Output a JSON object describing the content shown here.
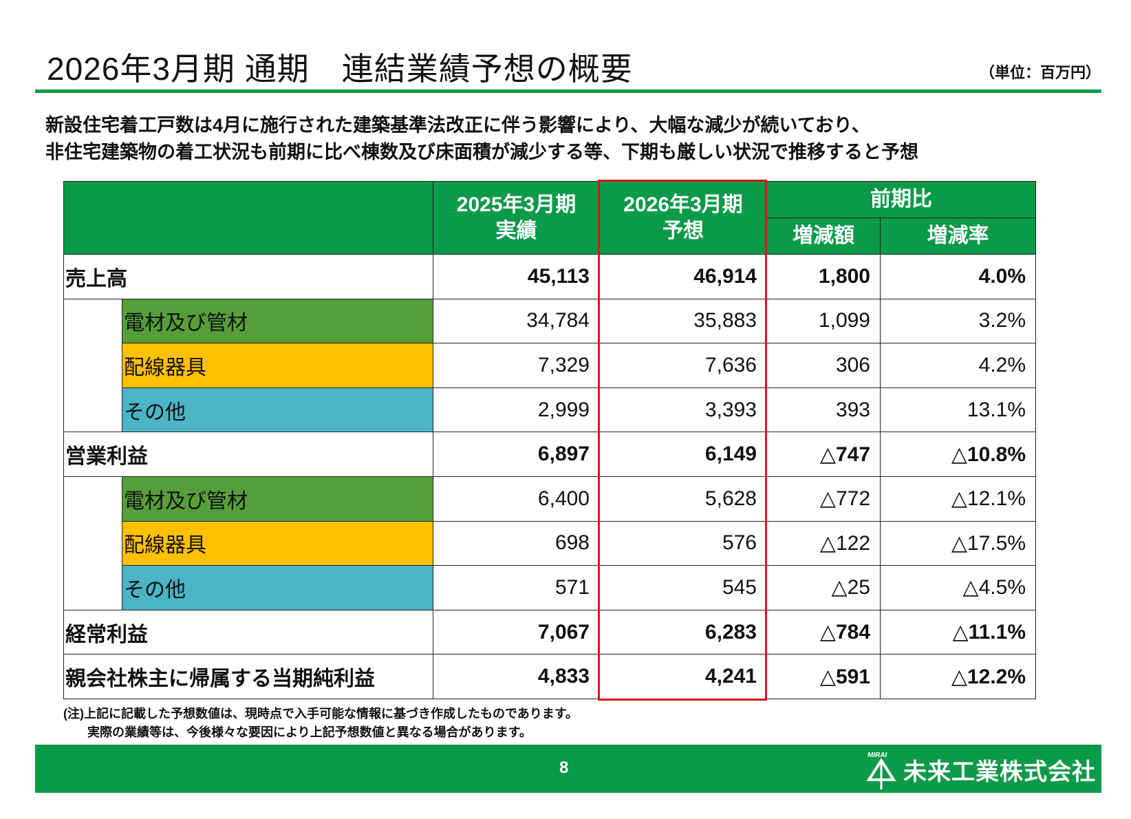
{
  "header": {
    "title": "2026年3月期 通期　連結業績予想の概要",
    "unit": "（単位：百万円）"
  },
  "lead": [
    "新設住宅着工戸数は4月に施行された建築基準法改正に伴う影響により、大幅な減少が続いており、",
    "非住宅建築物の着工状況も前期に比べ棟数及び床面積が減少する等、下期も厳しい状況で推移すると予想"
  ],
  "table": {
    "headers": {
      "prev": "2025年3月期\n実績",
      "forecast": "2026年3月期\n予想",
      "yoy": "前期比",
      "diff": "増減額",
      "rate": "増減率"
    },
    "colors": {
      "header": "#0a9a48",
      "segment_electrical": "#569e3a",
      "segment_wiring": "#ffc000",
      "segment_other": "#4bb4c6",
      "highlight_border": "#d8161b"
    },
    "rows": [
      {
        "label": "売上高",
        "level": 0,
        "prev": "45,113",
        "forecast": "46,914",
        "diff": "1,800",
        "rate": "4.0%"
      },
      {
        "label": "電材及び管材",
        "level": 1,
        "segment": "segment_electrical",
        "prev": "34,784",
        "forecast": "35,883",
        "diff": "1,099",
        "rate": "3.2%"
      },
      {
        "label": "配線器具",
        "level": 1,
        "segment": "segment_wiring",
        "prev": "7,329",
        "forecast": "7,636",
        "diff": "306",
        "rate": "4.2%"
      },
      {
        "label": "その他",
        "level": 1,
        "segment": "segment_other",
        "prev": "2,999",
        "forecast": "3,393",
        "diff": "393",
        "rate": "13.1%"
      },
      {
        "label": "営業利益",
        "level": 0,
        "prev": "6,897",
        "forecast": "6,149",
        "diff": "△747",
        "rate": "△10.8%"
      },
      {
        "label": "電材及び管材",
        "level": 1,
        "segment": "segment_electrical",
        "prev": "6,400",
        "forecast": "5,628",
        "diff": "△772",
        "rate": "△12.1%"
      },
      {
        "label": "配線器具",
        "level": 1,
        "segment": "segment_wiring",
        "prev": "698",
        "forecast": "576",
        "diff": "△122",
        "rate": "△17.5%"
      },
      {
        "label": "その他",
        "level": 1,
        "segment": "segment_other",
        "prev": "571",
        "forecast": "545",
        "diff": "△25",
        "rate": "△4.5%"
      },
      {
        "label": "経常利益",
        "level": 0,
        "prev": "7,067",
        "forecast": "6,283",
        "diff": "△784",
        "rate": "△11.1%"
      },
      {
        "label": "親会社株主に帰属する当期純利益",
        "level": 0,
        "prev": "4,833",
        "forecast": "4,241",
        "diff": "△591",
        "rate": "△12.2%"
      }
    ]
  },
  "notes": [
    "(注)上記に記載した予想数値は、現時点で入手可能な情報に基づき作成したものであります。",
    "実際の業績等は、今後様々な要因により上記予想数値と異なる場合があります。"
  ],
  "footer": {
    "page": "8",
    "company": "未来工業株式会社",
    "logo_mark": "MIRAI"
  }
}
